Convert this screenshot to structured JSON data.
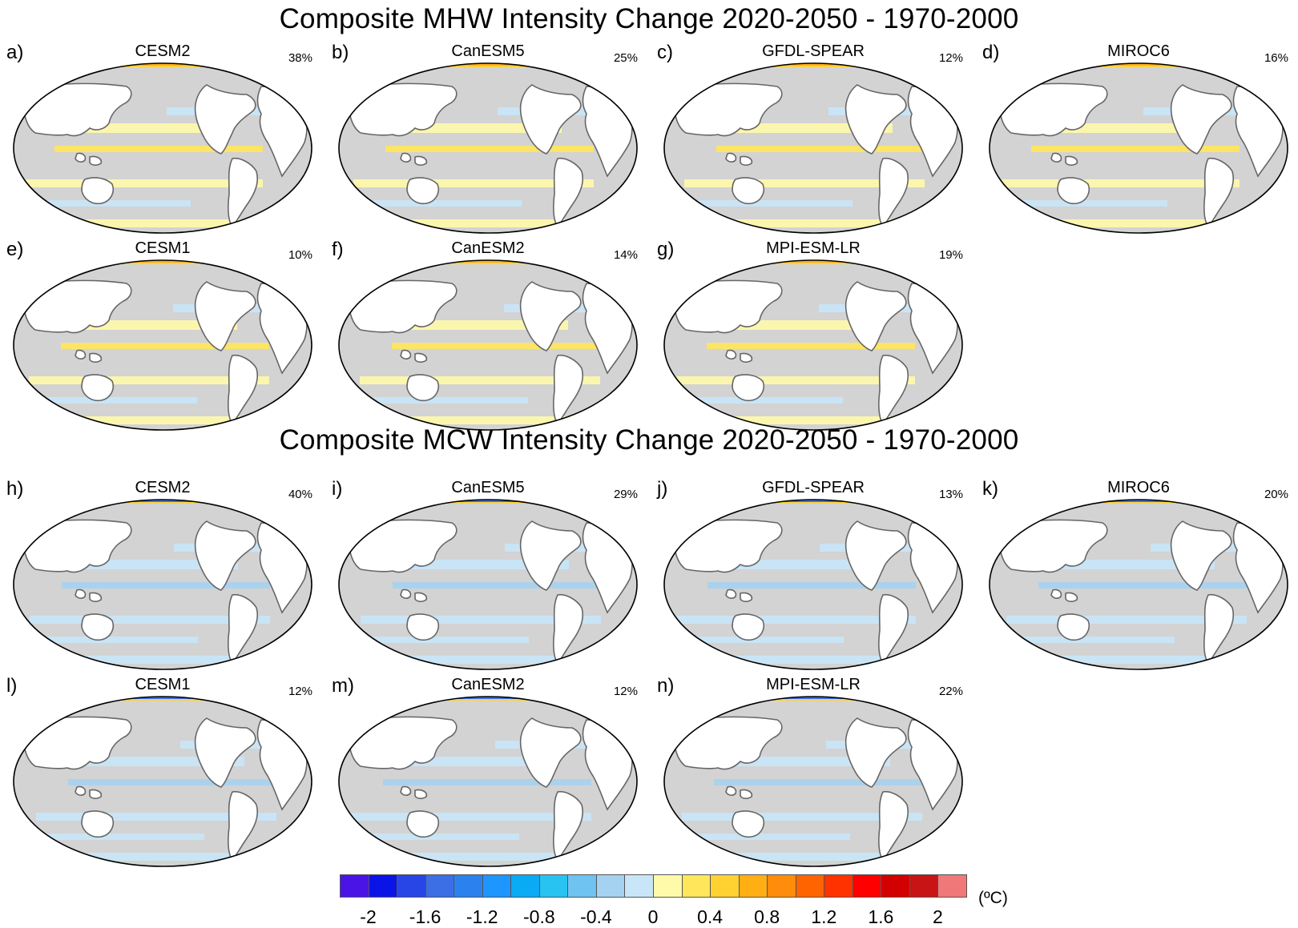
{
  "titles": {
    "mhw": "Composite MHW Intensity Change 2020-2050 - 1970-2000",
    "mcw": "Composite MCW Intensity Change 2020-2050 - 1970-2000"
  },
  "panels": [
    {
      "letter": "a)",
      "model": "CESM2",
      "percent": "38%"
    },
    {
      "letter": "b)",
      "model": "CanESM5",
      "percent": "25%"
    },
    {
      "letter": "c)",
      "model": "GFDL-SPEAR",
      "percent": "12%"
    },
    {
      "letter": "d)",
      "model": "MIROC6",
      "percent": "16%"
    },
    {
      "letter": "e)",
      "model": "CESM1",
      "percent": "10%"
    },
    {
      "letter": "f)",
      "model": "CanESM2",
      "percent": "14%"
    },
    {
      "letter": "g)",
      "model": "MPI-ESM-LR",
      "percent": "19%"
    },
    {
      "letter": "h)",
      "model": "CESM2",
      "percent": "40%"
    },
    {
      "letter": "i)",
      "model": "CanESM5",
      "percent": "29%"
    },
    {
      "letter": "j)",
      "model": "GFDL-SPEAR",
      "percent": "13%"
    },
    {
      "letter": "k)",
      "model": "MIROC6",
      "percent": "20%"
    },
    {
      "letter": "l)",
      "model": "CESM1",
      "percent": "12%"
    },
    {
      "letter": "m)",
      "model": "CanESM2",
      "percent": "12%"
    },
    {
      "letter": "n)",
      "model": "MPI-ESM-LR",
      "percent": "22%"
    }
  ],
  "colorbar": {
    "unit": "(ºC)",
    "labels": [
      "-2",
      "-1.6",
      "-1.2",
      "-0.8",
      "-0.4",
      "0",
      "0.4",
      "0.8",
      "1.2",
      "1.6",
      "2"
    ],
    "colors": [
      "#4b14e6",
      "#0a14e6",
      "#2846e6",
      "#3c6ee6",
      "#2b82ef",
      "#1e96ff",
      "#0aaaf5",
      "#28c3f0",
      "#6ec3f0",
      "#a5d2f0",
      "#c8e6f8",
      "#fffaaa",
      "#ffe65a",
      "#ffd232",
      "#ffaf14",
      "#ff8c0a",
      "#ff6400",
      "#ff3200",
      "#ff0000",
      "#d20000",
      "#c81414",
      "#f07878"
    ]
  }
}
